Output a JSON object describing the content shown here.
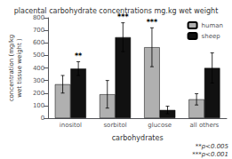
{
  "chart_data": {
    "type": "bar",
    "title": "placental carbohydrate concentrations mg.kg wet weight",
    "xlabel": "carbohydrates",
    "ylabel": "concentration (mg/kg\nwet tissue weight )",
    "categories": [
      "inositol",
      "sorbitol",
      "glucose",
      "all others"
    ],
    "series": [
      {
        "name": "human",
        "color": "#b0b0b0",
        "values": [
          270,
          190,
          565,
          150
        ],
        "errors": [
          70,
          110,
          155,
          45
        ]
      },
      {
        "name": "sheep",
        "color": "#111111",
        "values": [
          395,
          645,
          65,
          400
        ],
        "errors": [
          55,
          115,
          30,
          120
        ]
      }
    ],
    "ylim": [
      0,
      800
    ],
    "yticks": [
      0,
      100,
      200,
      300,
      400,
      500,
      600,
      700,
      800
    ],
    "grid": false,
    "legend": "upper right",
    "annotations": [
      {
        "text": "**",
        "category": "inositol",
        "series": "sheep"
      },
      {
        "text": "***",
        "category": "sorbitol",
        "series": "sheep"
      },
      {
        "text": "***",
        "category": "glucose",
        "series": "human"
      },
      {
        "text": "**p<0.005"
      },
      {
        "text": "***p<0.001"
      }
    ]
  }
}
